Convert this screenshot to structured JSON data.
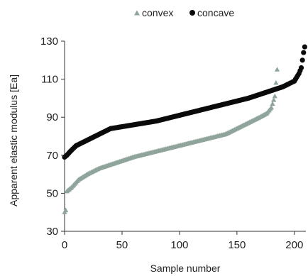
{
  "chart_data": {
    "type": "scatter",
    "title": "",
    "xlabel": "Sample number",
    "ylabel": "Apparent elastic modulus [Ea]",
    "xlim": [
      0,
      210
    ],
    "ylim": [
      30,
      130
    ],
    "xticks": [
      0,
      50,
      100,
      150,
      200
    ],
    "yticks": [
      30,
      50,
      70,
      90,
      110,
      130
    ],
    "xtick_labels": [
      "0",
      "50",
      "100",
      "150",
      "200"
    ],
    "ytick_labels": [
      "30",
      "50",
      "70",
      "90",
      "110",
      "130"
    ],
    "grid": false,
    "legend_position": "top",
    "series": [
      {
        "name": "convex",
        "marker": "triangle",
        "color": "#8fa59b",
        "anchors": [
          [
            0,
            40
          ],
          [
            1,
            41
          ],
          [
            2,
            51
          ],
          [
            6,
            53
          ],
          [
            12,
            57
          ],
          [
            20,
            60
          ],
          [
            30,
            63
          ],
          [
            40,
            65
          ],
          [
            60,
            69
          ],
          [
            80,
            72
          ],
          [
            100,
            75
          ],
          [
            120,
            78
          ],
          [
            140,
            81
          ],
          [
            150,
            84
          ],
          [
            160,
            87
          ],
          [
            170,
            90
          ],
          [
            176,
            92
          ],
          [
            180,
            95
          ],
          [
            183,
            101
          ],
          [
            185,
            115
          ]
        ],
        "values_count": 186
      },
      {
        "name": "concave",
        "marker": "circle",
        "color": "#0a0a0a",
        "anchors": [
          [
            0,
            69
          ],
          [
            2,
            70
          ],
          [
            5,
            72
          ],
          [
            10,
            75
          ],
          [
            20,
            78
          ],
          [
            30,
            81
          ],
          [
            40,
            84
          ],
          [
            60,
            86
          ],
          [
            80,
            88
          ],
          [
            100,
            91
          ],
          [
            120,
            94
          ],
          [
            140,
            97
          ],
          [
            160,
            100
          ],
          [
            180,
            104
          ],
          [
            190,
            106
          ],
          [
            200,
            109
          ],
          [
            204,
            113
          ],
          [
            206,
            116
          ],
          [
            208,
            124
          ],
          [
            209,
            127
          ]
        ],
        "values_count": 210
      }
    ]
  }
}
